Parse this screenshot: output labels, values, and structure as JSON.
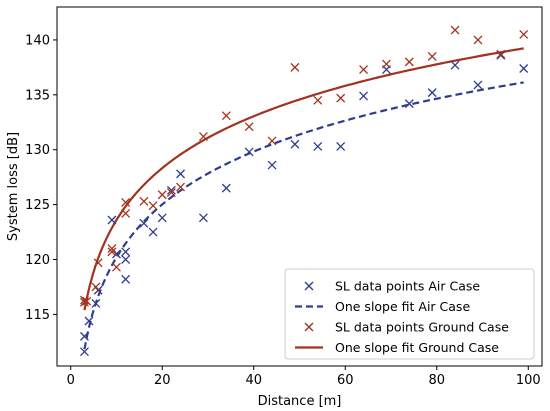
{
  "chart_data": {
    "type": "scatter",
    "xlabel": "Distance [m]",
    "ylabel": "System loss [dB]",
    "xlim": [
      -3,
      103
    ],
    "ylim": [
      110.3,
      143
    ],
    "xticks": [
      0,
      20,
      40,
      60,
      80,
      100
    ],
    "yticks": [
      115,
      120,
      125,
      130,
      135,
      140
    ],
    "grid": false,
    "legend_position": "lower-right",
    "series": [
      {
        "name": "SL data points Air Case",
        "kind": "scatter",
        "marker": "x",
        "color": "#2e3d8f",
        "points": [
          [
            3,
            111.6
          ],
          [
            3,
            113.0
          ],
          [
            4,
            114.4
          ],
          [
            5.5,
            116.0
          ],
          [
            6,
            117.2
          ],
          [
            9,
            123.6
          ],
          [
            10,
            120.5
          ],
          [
            12,
            120.0
          ],
          [
            12,
            120.7
          ],
          [
            12,
            118.2
          ],
          [
            16,
            123.3
          ],
          [
            18,
            122.5
          ],
          [
            20,
            123.8
          ],
          [
            22,
            126.3
          ],
          [
            24,
            127.8
          ],
          [
            29,
            123.8
          ],
          [
            34,
            126.5
          ],
          [
            39,
            129.8
          ],
          [
            44,
            128.6
          ],
          [
            49,
            130.5
          ],
          [
            54,
            130.3
          ],
          [
            59,
            130.3
          ],
          [
            64,
            134.9
          ],
          [
            69,
            137.3
          ],
          [
            74,
            134.2
          ],
          [
            79,
            135.2
          ],
          [
            84,
            137.7
          ],
          [
            89,
            135.9
          ],
          [
            94,
            138.6
          ],
          [
            99,
            137.4
          ]
        ]
      },
      {
        "name": "One slope fit Air Case",
        "kind": "line",
        "dash": "dashed",
        "color": "#2e3d8f",
        "fit": {
          "a": 104.2,
          "b": 16.0,
          "xmin": 3,
          "xmax": 99
        }
      },
      {
        "name": "SL data points Ground Case",
        "kind": "scatter",
        "marker": "x",
        "color": "#a3321f",
        "points": [
          [
            3,
            116.1
          ],
          [
            3,
            116.3
          ],
          [
            3.5,
            116.2
          ],
          [
            5.5,
            117.5
          ],
          [
            6,
            119.7
          ],
          [
            9,
            121.0
          ],
          [
            9,
            120.7
          ],
          [
            10,
            119.3
          ],
          [
            12,
            125.2
          ],
          [
            12,
            124.2
          ],
          [
            16,
            125.3
          ],
          [
            18,
            124.9
          ],
          [
            20,
            125.9
          ],
          [
            22,
            126.1
          ],
          [
            24,
            126.6
          ],
          [
            29,
            131.2
          ],
          [
            34,
            133.1
          ],
          [
            39,
            132.1
          ],
          [
            44,
            130.8
          ],
          [
            49,
            137.5
          ],
          [
            54,
            134.5
          ],
          [
            59,
            134.7
          ],
          [
            64,
            137.3
          ],
          [
            69,
            137.8
          ],
          [
            74,
            138.0
          ],
          [
            79,
            138.5
          ],
          [
            84,
            140.9
          ],
          [
            89,
            140.0
          ],
          [
            94,
            138.7
          ],
          [
            99,
            140.5
          ]
        ]
      },
      {
        "name": "One slope fit Ground Case",
        "kind": "line",
        "dash": "solid",
        "color": "#a3321f",
        "fit": {
          "a": 107.9,
          "b": 15.7,
          "xmin": 3,
          "xmax": 99
        }
      }
    ]
  }
}
